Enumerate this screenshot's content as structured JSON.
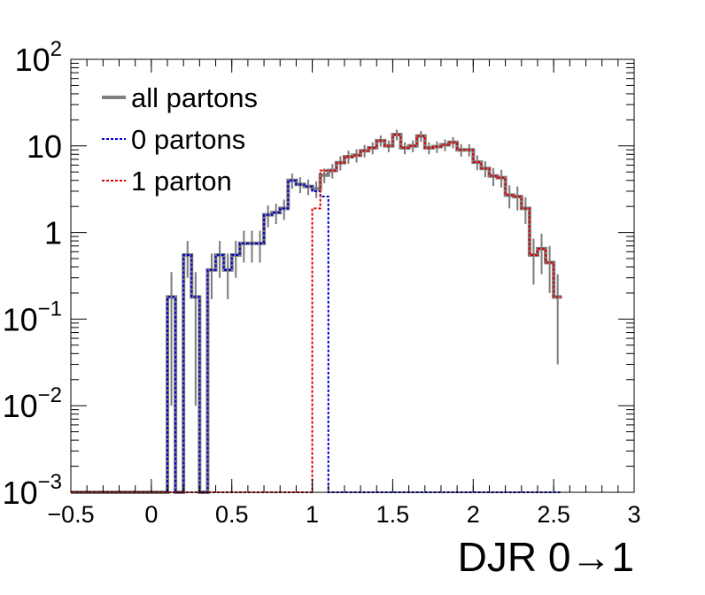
{
  "chart_data": {
    "type": "line",
    "xlabel": "DJR 0→1",
    "ylabel": "",
    "xlim": [
      -0.5,
      3.0
    ],
    "ylim": [
      0.001,
      100
    ],
    "yscale": "log",
    "grid": false,
    "legend_position": "top-left",
    "x_ticks": [
      {
        "value": -0.5,
        "label": "−0.5"
      },
      {
        "value": 0,
        "label": "0"
      },
      {
        "value": 0.5,
        "label": "0.5"
      },
      {
        "value": 1,
        "label": "1"
      },
      {
        "value": 1.5,
        "label": "1.5"
      },
      {
        "value": 2,
        "label": "2"
      },
      {
        "value": 2.5,
        "label": "2.5"
      },
      {
        "value": 3,
        "label": "3"
      }
    ],
    "y_ticks": [
      {
        "value": 0.001,
        "base": "10",
        "exp": "−3"
      },
      {
        "value": 0.01,
        "base": "10",
        "exp": "−2"
      },
      {
        "value": 0.1,
        "base": "10",
        "exp": "−1"
      },
      {
        "value": 1,
        "base": "1",
        "exp": ""
      },
      {
        "value": 10,
        "base": "10",
        "exp": ""
      },
      {
        "value": 100,
        "base": "10",
        "exp": "2"
      }
    ],
    "bin_edges_start": -0.5,
    "bin_width": 0.05,
    "series": [
      {
        "name": "all partons",
        "style": "solid",
        "color": "#808080",
        "error_color": "#7b7b7b",
        "values": [
          0,
          0,
          0,
          0,
          0,
          0,
          0,
          0,
          0,
          0,
          0,
          0,
          0.18,
          0,
          0.55,
          0.18,
          0,
          0.37,
          0.55,
          0.37,
          0.55,
          0.75,
          0.75,
          0.75,
          1.6,
          1.7,
          1.9,
          4.0,
          3.6,
          3.4,
          3.2,
          4.6,
          5.2,
          6.4,
          7.5,
          7.8,
          8.8,
          9.5,
          11.5,
          10.0,
          13.5,
          9.5,
          10.0,
          13.0,
          9.5,
          9.8,
          10.3,
          11.0,
          9.0,
          9.0,
          6.5,
          5.5,
          4.5,
          4.3,
          2.7,
          2.6,
          1.9,
          0.55,
          0.65,
          0.45,
          0.18
        ],
        "errors": [
          0,
          0,
          0,
          0,
          0,
          0,
          0,
          0,
          0,
          0,
          0,
          0,
          0.17,
          0,
          0.25,
          0.17,
          0,
          0.2,
          0.25,
          0.2,
          0.25,
          0.3,
          0.3,
          0.3,
          0.45,
          0.45,
          0.5,
          0.8,
          0.75,
          0.7,
          0.7,
          0.9,
          1.0,
          1.2,
          1.3,
          1.35,
          1.45,
          1.5,
          1.7,
          1.55,
          1.9,
          1.5,
          1.55,
          1.85,
          1.5,
          1.5,
          1.6,
          1.65,
          1.5,
          1.5,
          1.25,
          1.15,
          1.05,
          1.0,
          0.8,
          0.8,
          0.65,
          0.3,
          0.32,
          0.25,
          0.15
        ]
      },
      {
        "name": "0 partons",
        "style": "dotted",
        "color": "#0000cc",
        "values": [
          0,
          0,
          0,
          0,
          0,
          0,
          0,
          0,
          0,
          0,
          0,
          0,
          0.18,
          0,
          0.55,
          0.18,
          0,
          0.37,
          0.55,
          0.37,
          0.55,
          0.75,
          0.75,
          0.75,
          1.6,
          1.7,
          1.9,
          4.0,
          3.6,
          3.4,
          3.0,
          2.6,
          0,
          0,
          0,
          0,
          0,
          0,
          0,
          0,
          0,
          0,
          0,
          0,
          0,
          0,
          0,
          0,
          0,
          0,
          0,
          0,
          0,
          0,
          0,
          0,
          0,
          0,
          0,
          0,
          0
        ]
      },
      {
        "name": "1 parton",
        "style": "dotted",
        "color": "#dd0000",
        "values": [
          0,
          0,
          0,
          0,
          0,
          0,
          0,
          0,
          0,
          0,
          0,
          0,
          0,
          0,
          0,
          0,
          0,
          0,
          0,
          0,
          0,
          0,
          0,
          0,
          0,
          0,
          0,
          0,
          0,
          0,
          1.9,
          5.2,
          5.2,
          6.4,
          7.5,
          7.8,
          8.8,
          9.5,
          11.5,
          10.0,
          13.5,
          9.5,
          10.0,
          13.0,
          9.5,
          9.8,
          10.3,
          11.0,
          9.0,
          9.0,
          6.5,
          5.5,
          4.5,
          4.3,
          2.7,
          2.6,
          1.9,
          0.55,
          0.65,
          0.45,
          0.18
        ]
      }
    ]
  }
}
